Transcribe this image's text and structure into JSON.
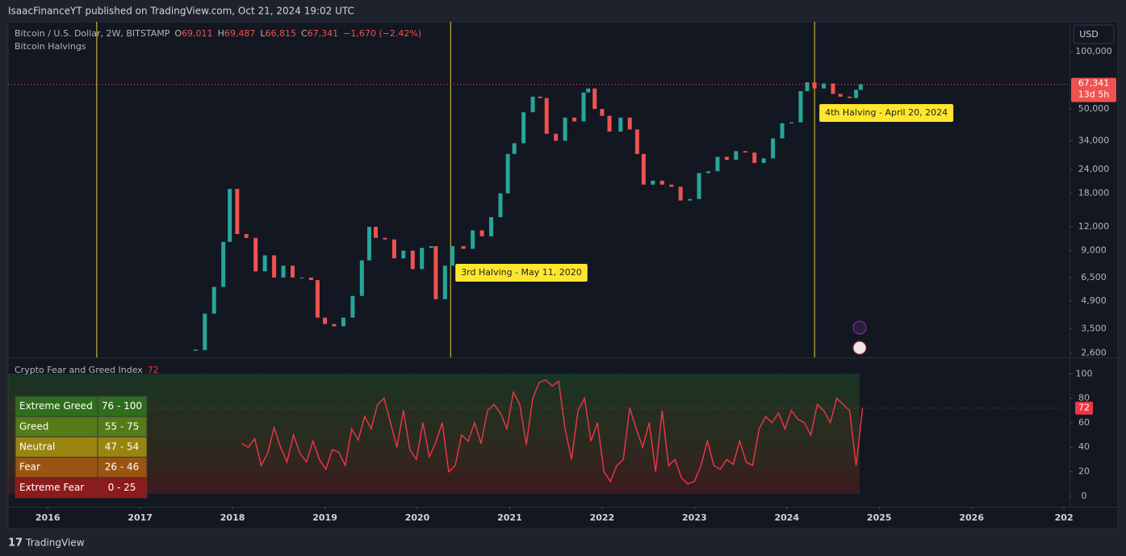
{
  "header": {
    "publisher": "IsaacFinanceYT published on TradingView.com, Oct 21, 2024 19:02 UTC"
  },
  "footer": {
    "brand": "TradingView"
  },
  "currency": "USD",
  "chart_data": [
    {
      "type": "candlestick",
      "title": "Bitcoin / U.S. Dollar, 2W, BITSTAMP",
      "ohlc": [
        {
          "key": "O",
          "value": "69,011"
        },
        {
          "key": "H",
          "value": "69,487"
        },
        {
          "key": "L",
          "value": "66,815"
        },
        {
          "key": "C",
          "value": "67,341"
        }
      ],
      "change": "−1,670 (−2.42%)",
      "overlay_title": "Bitcoin Halvings",
      "log_scale": true,
      "x": [
        2017.6,
        2017.7,
        2017.8,
        2017.9,
        2017.97,
        2018.05,
        2018.15,
        2018.25,
        2018.35,
        2018.45,
        2018.55,
        2018.65,
        2018.75,
        2018.85,
        2018.92,
        2019.0,
        2019.1,
        2019.2,
        2019.3,
        2019.4,
        2019.48,
        2019.55,
        2019.65,
        2019.75,
        2019.85,
        2019.95,
        2020.05,
        2020.15,
        2020.2,
        2020.3,
        2020.38,
        2020.5,
        2020.6,
        2020.7,
        2020.8,
        2020.9,
        2020.98,
        2021.05,
        2021.15,
        2021.25,
        2021.33,
        2021.4,
        2021.5,
        2021.6,
        2021.7,
        2021.8,
        2021.85,
        2021.92,
        2022.0,
        2022.08,
        2022.2,
        2022.3,
        2022.38,
        2022.45,
        2022.55,
        2022.65,
        2022.75,
        2022.85,
        2022.95,
        2023.05,
        2023.15,
        2023.25,
        2023.35,
        2023.45,
        2023.55,
        2023.65,
        2023.75,
        2023.85,
        2023.95,
        2024.05,
        2024.15,
        2024.22,
        2024.3,
        2024.4,
        2024.5,
        2024.58,
        2024.68,
        2024.75,
        2024.8
      ],
      "series": [
        {
          "values": [
            2700,
            4200,
            5800,
            10000,
            19000,
            11000,
            10500,
            7000,
            8500,
            6500,
            7500,
            6500,
            6500,
            6300,
            4000,
            3700,
            3600,
            4000,
            5200,
            8000,
            12000,
            10500,
            10300,
            8200,
            9000,
            7200,
            9300,
            9500,
            5000,
            7500,
            9500,
            9200,
            11500,
            10700,
            13500,
            18000,
            29000,
            33000,
            48000,
            58000,
            57000,
            37000,
            34000,
            45000,
            43000,
            61000,
            64000,
            50000,
            46000,
            38000,
            45000,
            39000,
            29000,
            20000,
            21000,
            20000,
            19500,
            16500,
            16800,
            23000,
            23500,
            28000,
            27000,
            30000,
            29500,
            26000,
            27500,
            35000,
            42000,
            42500,
            62000,
            69000,
            64000,
            68000,
            60000,
            58000,
            57000,
            63000,
            67341
          ],
          "up_color": "#26a69a",
          "down_color": "#ef5350"
        }
      ],
      "price_tag": "67,341",
      "countdown": "13d 5h",
      "halvings": [
        {
          "x": 2016.53
        },
        {
          "x": 2020.36,
          "label": "3rd Halving - May 11, 2020"
        },
        {
          "x": 2024.3,
          "label": "4th Halving - April 20, 2024"
        }
      ],
      "xlim": [
        2015.57,
        2027.06
      ],
      "xticks": [
        2016,
        2017,
        2018,
        2019,
        2020,
        2021,
        2022,
        2023,
        2024,
        2025,
        2026,
        {
          "value": 2027,
          "label": "202"
        }
      ],
      "ylim": [
        2470,
        143500
      ],
      "yticks": [
        {
          "value": 100000,
          "label": "100,000"
        },
        {
          "value": 50000,
          "label": "50,000"
        },
        {
          "value": 34000,
          "label": "34,000"
        },
        {
          "value": 24000,
          "label": "24,000"
        },
        {
          "value": 18000,
          "label": "18,000"
        },
        {
          "value": 12000,
          "label": "12,000"
        },
        {
          "value": 9000,
          "label": "9,000"
        },
        {
          "value": 6500,
          "label": "6,500"
        },
        {
          "value": 4900,
          "label": "4,900"
        },
        {
          "value": 3500,
          "label": "3,500"
        },
        {
          "value": 2600,
          "label": "2,600"
        }
      ]
    },
    {
      "type": "line",
      "title": "Crypto Fear and Greed Index",
      "current_label": "72",
      "x": [
        2018.1,
        2018.17,
        2018.24,
        2018.31,
        2018.38,
        2018.45,
        2018.52,
        2018.59,
        2018.66,
        2018.73,
        2018.8,
        2018.87,
        2018.94,
        2019.01,
        2019.08,
        2019.15,
        2019.22,
        2019.29,
        2019.36,
        2019.43,
        2019.5,
        2019.57,
        2019.64,
        2019.71,
        2019.78,
        2019.85,
        2019.92,
        2019.99,
        2020.06,
        2020.13,
        2020.2,
        2020.27,
        2020.34,
        2020.41,
        2020.48,
        2020.55,
        2020.62,
        2020.69,
        2020.76,
        2020.83,
        2020.9,
        2020.97,
        2021.04,
        2021.11,
        2021.18,
        2021.25,
        2021.32,
        2021.39,
        2021.46,
        2021.53,
        2021.6,
        2021.67,
        2021.74,
        2021.81,
        2021.88,
        2021.95,
        2022.02,
        2022.09,
        2022.16,
        2022.23,
        2022.3,
        2022.37,
        2022.44,
        2022.51,
        2022.58,
        2022.65,
        2022.72,
        2022.79,
        2022.86,
        2022.93,
        2023.0,
        2023.07,
        2023.14,
        2023.21,
        2023.28,
        2023.35,
        2023.42,
        2023.49,
        2023.56,
        2023.63,
        2023.7,
        2023.77,
        2023.84,
        2023.91,
        2023.98,
        2024.05,
        2024.12,
        2024.19,
        2024.26,
        2024.33,
        2024.4,
        2024.47,
        2024.54,
        2024.61,
        2024.68,
        2024.75,
        2024.82
      ],
      "series": [
        {
          "values": [
            43,
            40,
            47,
            25,
            35,
            56,
            40,
            28,
            50,
            35,
            28,
            45,
            30,
            22,
            38,
            36,
            25,
            55,
            46,
            65,
            55,
            75,
            80,
            60,
            40,
            70,
            38,
            30,
            60,
            32,
            44,
            60,
            20,
            25,
            50,
            45,
            60,
            43,
            70,
            75,
            68,
            55,
            85,
            75,
            42,
            80,
            93,
            95,
            90,
            94,
            55,
            30,
            70,
            80,
            45,
            60,
            20,
            12,
            25,
            30,
            72,
            55,
            40,
            60,
            20,
            70,
            25,
            30,
            15,
            10,
            12,
            25,
            45,
            25,
            22,
            30,
            26,
            45,
            28,
            25,
            55,
            65,
            60,
            68,
            55,
            70,
            63,
            60,
            50,
            75,
            70,
            60,
            80,
            75,
            70,
            25,
            72
          ],
          "color": "#f23645"
        }
      ],
      "xlim": [
        2015.57,
        2027.06
      ],
      "ylim": [
        -8.7,
        113.4
      ],
      "yticks": [
        0,
        20,
        40,
        60,
        80,
        100
      ],
      "zones": [
        {
          "name": "Extreme Greed",
          "range": "76 - 100",
          "color": "#2f6d1c"
        },
        {
          "name": "Greed",
          "range": "55 - 75",
          "color": "#557a18"
        },
        {
          "name": "Neutral",
          "range": "47 - 54",
          "color": "#9a8410"
        },
        {
          "name": "Fear",
          "range": "26 - 46",
          "color": "#9a5512"
        },
        {
          "name": "Extreme Fear",
          "range": "0 - 25",
          "color": "#8c1c1c"
        }
      ]
    }
  ]
}
